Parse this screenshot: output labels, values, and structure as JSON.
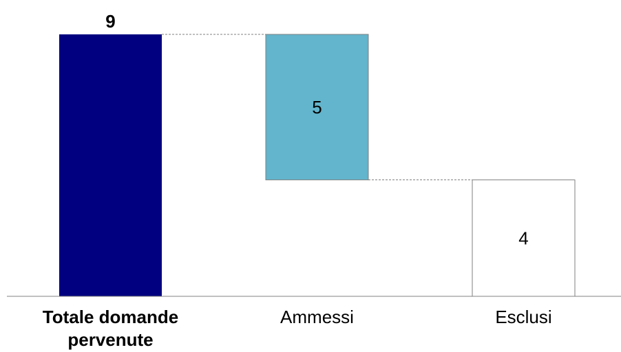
{
  "chart_data": {
    "type": "bar",
    "subtype": "waterfall",
    "categories": [
      "Totale domande pervenute",
      "Ammessi",
      "Esclusi"
    ],
    "category_lines": [
      [
        "Totale domande",
        "pervenute"
      ],
      [
        "Ammessi"
      ],
      [
        "Esclusi"
      ]
    ],
    "values": [
      9,
      5,
      4
    ],
    "value_labels": [
      "9",
      "5",
      "4"
    ],
    "ylim": [
      0,
      9
    ],
    "grid": false,
    "legend": "none",
    "colors": {
      "total": "#000080",
      "ammessi": "#62B5CC",
      "esclusi": "#FFFFFF",
      "outline": "#7F7F7F",
      "connector": "#7F7F7F",
      "axis": "#808080",
      "text": "#000000"
    }
  }
}
